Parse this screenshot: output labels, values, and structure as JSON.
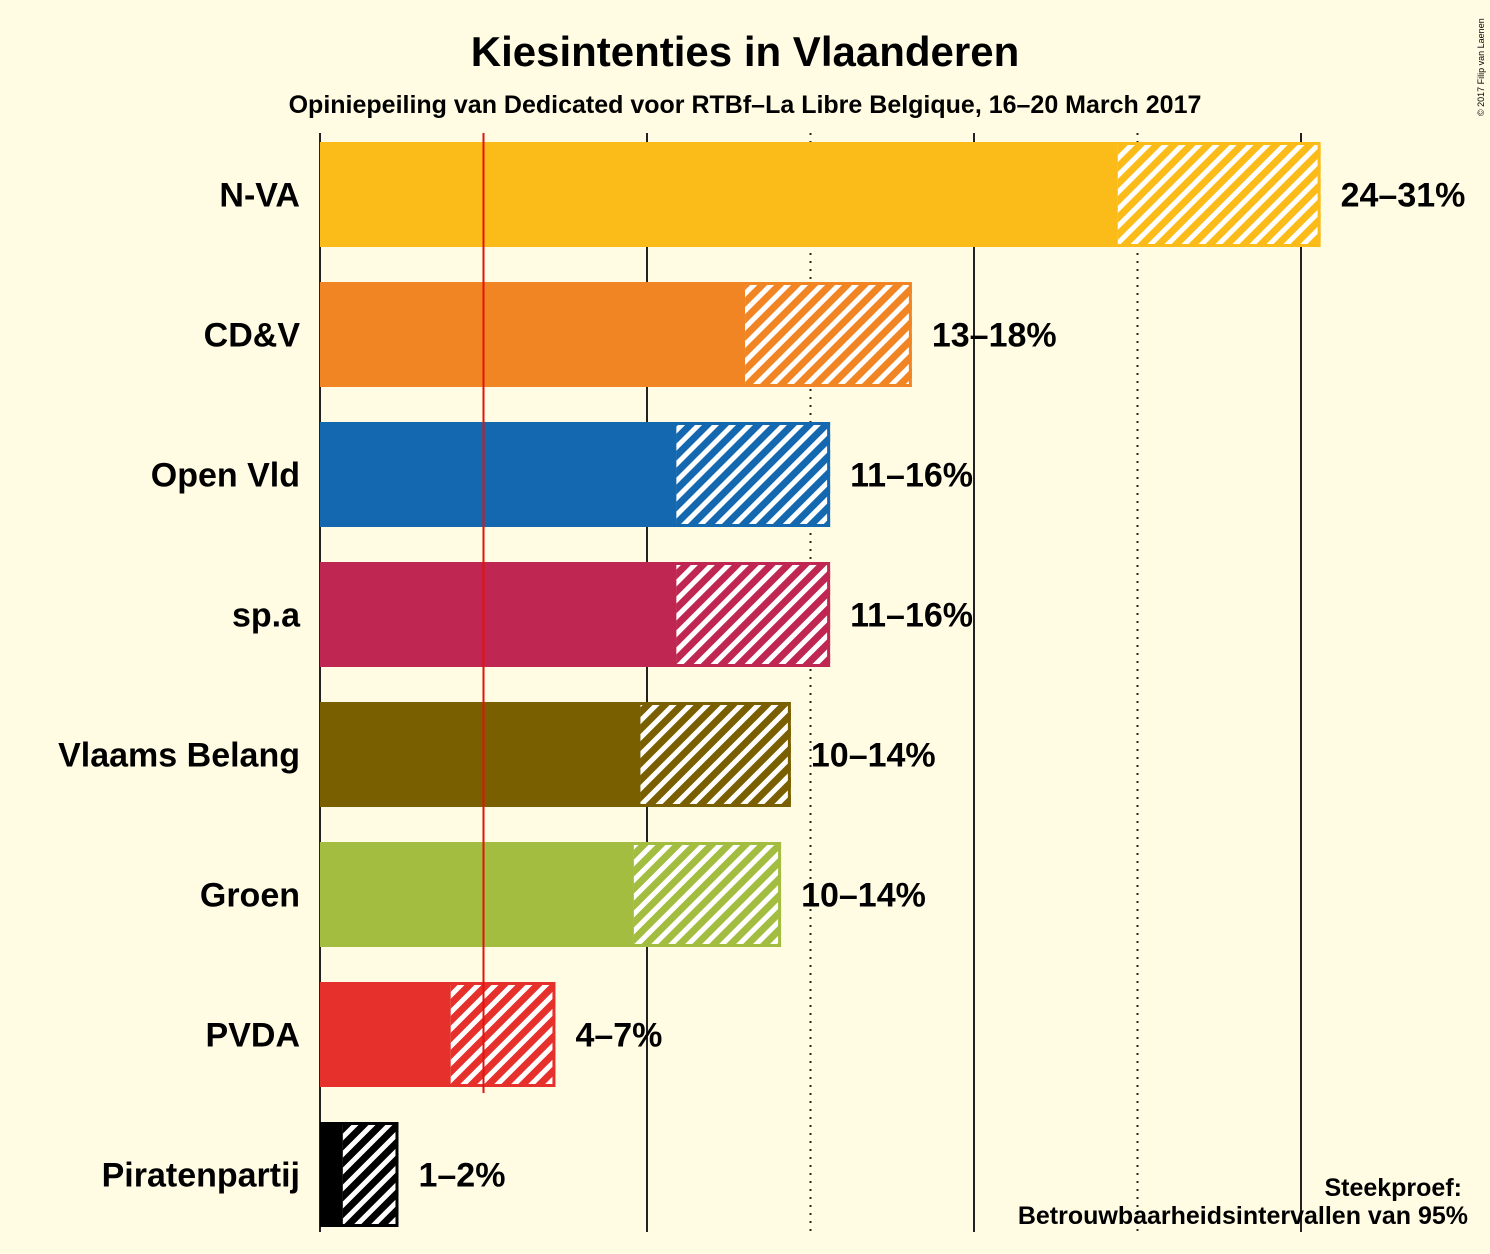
{
  "chart_data": {
    "type": "bar",
    "orientation": "horizontal",
    "title": "Kiesintenties in Vlaanderen",
    "subtitle": "Opiniepeiling van Dedicated voor RTBf–La Libre Belgique, 16–20 March 2017",
    "credit": "© 2017 Filip van Laenen",
    "xlim": [
      0,
      31
    ],
    "threshold": 5,
    "gridlines_solid": [
      0,
      10,
      20,
      30
    ],
    "gridlines_dotted": [
      15,
      25
    ],
    "categories": [
      "N-VA",
      "CD&V",
      "Open Vld",
      "sp.a",
      "Vlaams Belang",
      "Groen",
      "PVDA",
      "Piratenpartij"
    ],
    "series": [
      {
        "party": "N-VA",
        "low": 24.4,
        "high": 30.6,
        "label": "24–31%",
        "color": "#FBBC19"
      },
      {
        "party": "CD&V",
        "low": 13.0,
        "high": 18.1,
        "label": "13–18%",
        "color": "#F18423"
      },
      {
        "party": "Open Vld",
        "low": 10.9,
        "high": 15.6,
        "label": "11–16%",
        "color": "#1368AF"
      },
      {
        "party": "sp.a",
        "low": 10.9,
        "high": 15.6,
        "label": "11–16%",
        "color": "#BF2651"
      },
      {
        "party": "Vlaams Belang",
        "low": 9.8,
        "high": 14.4,
        "label": "10–14%",
        "color": "#7A5F00"
      },
      {
        "party": "Groen",
        "low": 9.6,
        "high": 14.1,
        "label": "10–14%",
        "color": "#A2BD40"
      },
      {
        "party": "PVDA",
        "low": 4.0,
        "high": 7.2,
        "label": "4–7%",
        "color": "#E6302C"
      },
      {
        "party": "Piratenpartij",
        "low": 0.7,
        "high": 2.4,
        "label": "1–2%",
        "color": "#000000"
      }
    ],
    "legend_lines": [
      "Steekproef:",
      "Betrouwbaarheidsintervallen van 95%"
    ]
  }
}
